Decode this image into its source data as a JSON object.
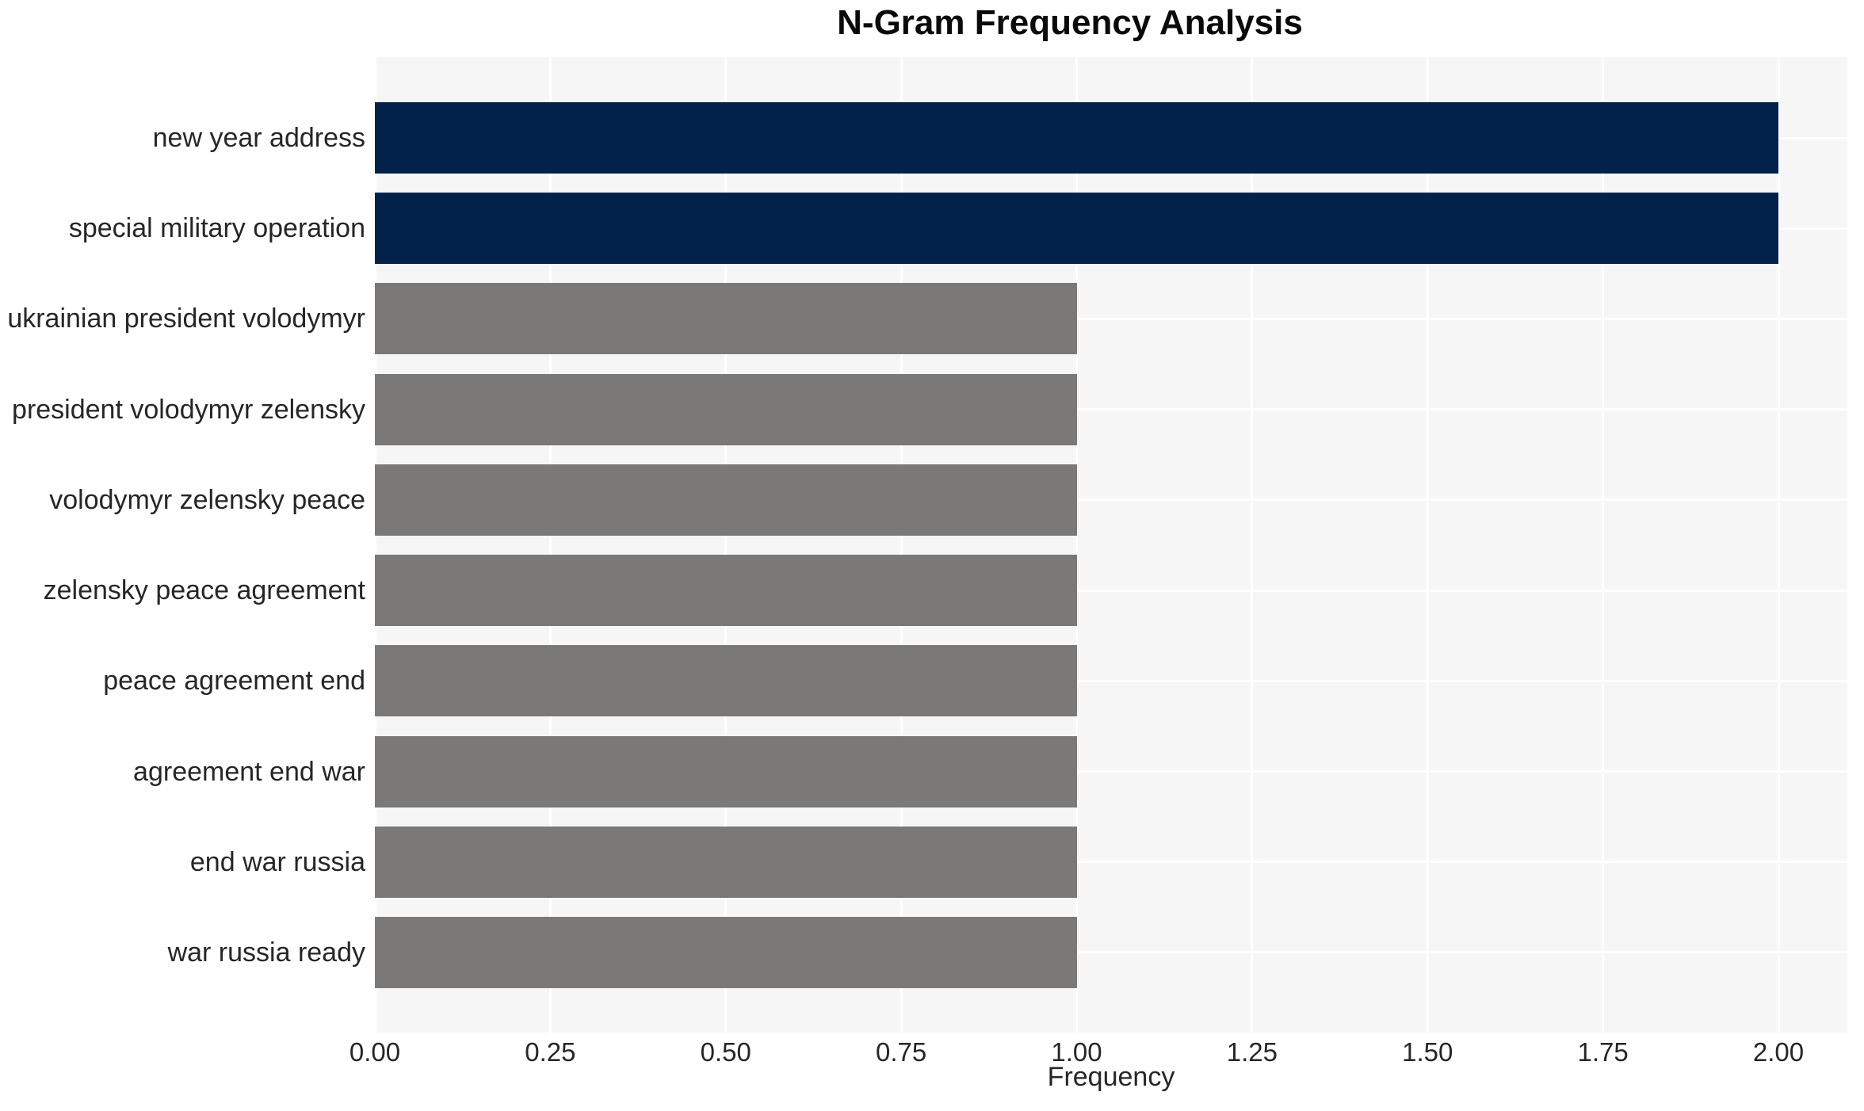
{
  "chart_data": {
    "type": "bar",
    "orientation": "horizontal",
    "title": "N-Gram Frequency Analysis",
    "xlabel": "Frequency",
    "ylabel": "",
    "categories": [
      "new year address",
      "special military operation",
      "ukrainian president volodymyr",
      "president volodymyr zelensky",
      "volodymyr zelensky peace",
      "zelensky peace agreement",
      "peace agreement end",
      "agreement end war",
      "end war russia",
      "war russia ready"
    ],
    "values": [
      2,
      2,
      1,
      1,
      1,
      1,
      1,
      1,
      1,
      1
    ],
    "bar_colors": [
      "#02224c",
      "#02224c",
      "#7b7977",
      "#7b7977",
      "#7b7977",
      "#7b7977",
      "#7b7977",
      "#7b7977",
      "#7b7977",
      "#7b7977"
    ],
    "xlim": [
      0,
      2.1
    ],
    "x_tick_labels": [
      "0.00",
      "0.25",
      "0.50",
      "0.75",
      "1.00",
      "1.25",
      "1.50",
      "1.75",
      "2.00"
    ],
    "grid": true,
    "legend": false,
    "colors": {
      "bar_high": "#02224c",
      "bar_low": "#7b7977",
      "plot_background": "#f7f6f6",
      "gridline": "#ffffff",
      "tick_text": "#262626",
      "title_text": "#0a0a0a"
    }
  }
}
